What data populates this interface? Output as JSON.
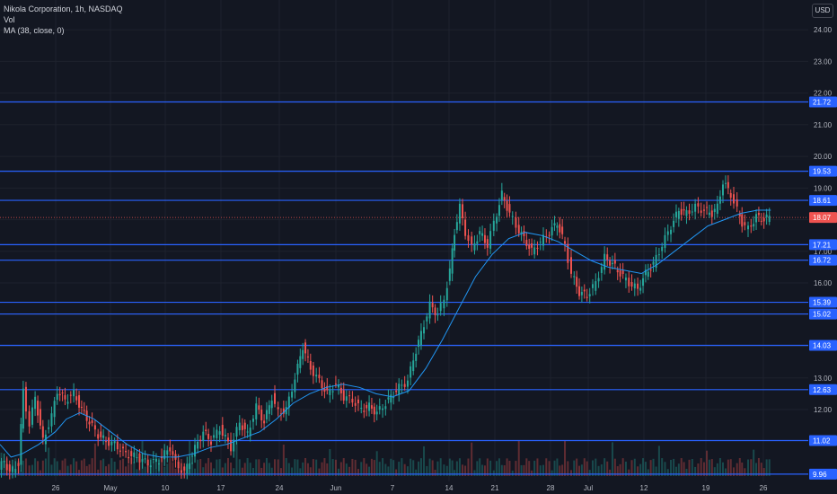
{
  "legend": {
    "symbol_line": "Nikola Corporation, 1h, NASDAQ",
    "vol_label": "Vol",
    "ma_label": "MA (38, close, 0)"
  },
  "currency_badge": "USD",
  "colors": {
    "background": "#131722",
    "grid": "#1e222d",
    "hline": "#2962ff",
    "up": "#26a69a",
    "down": "#ef5350",
    "ma": "#2196f3",
    "text": "#b2b5be",
    "last_price_bg": "#ef5350"
  },
  "chart_data": {
    "type": "candlestick",
    "title": "Nikola Corporation, 1h, NASDAQ",
    "x_ticks": [
      "26",
      "May",
      "10",
      "17",
      "24",
      "Jun",
      "7",
      "14",
      "21",
      "28",
      "Jul",
      "12",
      "19",
      "26"
    ],
    "x_tick_positions_in_bars": [
      1,
      1.2,
      2.2,
      3.2,
      4.2,
      5.2,
      6.2,
      7.2,
      8.2,
      9.2,
      10.2,
      11.2,
      12.2,
      13.2
    ],
    "y_ticks": [
      12.0,
      13.0,
      14.0,
      15.0,
      16.0,
      17.0,
      18.0,
      19.0,
      20.0,
      21.0,
      22.0,
      23.0,
      24.0
    ],
    "ylim": [
      9.9,
      24.6
    ],
    "horizontal_levels": [
      9.96,
      11.02,
      12.63,
      14.03,
      15.02,
      15.39,
      16.72,
      17.21,
      18.61,
      19.53,
      21.72
    ],
    "last_price": 18.07,
    "price_path": [
      [
        0,
        10.1
      ],
      [
        0.05,
        10.4
      ],
      [
        0.1,
        10.0
      ],
      [
        0.18,
        10.3
      ],
      [
        0.22,
        12.6
      ],
      [
        0.28,
        11.5
      ],
      [
        0.33,
        12.4
      ],
      [
        0.4,
        11.0
      ],
      [
        0.48,
        11.8
      ],
      [
        0.53,
        12.6
      ],
      [
        0.6,
        12.3
      ],
      [
        0.68,
        12.5
      ],
      [
        0.75,
        12.0
      ],
      [
        0.82,
        11.6
      ],
      [
        0.9,
        11.2
      ],
      [
        0.97,
        11.0
      ],
      [
        1.05,
        10.9
      ],
      [
        1.15,
        10.6
      ],
      [
        1.25,
        10.5
      ],
      [
        1.35,
        10.3
      ],
      [
        1.45,
        10.4
      ],
      [
        1.55,
        10.8
      ],
      [
        1.6,
        10.3
      ],
      [
        1.68,
        10.0
      ],
      [
        1.75,
        10.6
      ],
      [
        1.85,
        11.3
      ],
      [
        1.92,
        11.0
      ],
      [
        2.0,
        11.4
      ],
      [
        2.1,
        10.8
      ],
      [
        2.18,
        11.6
      ],
      [
        2.25,
        11.2
      ],
      [
        2.33,
        12.1
      ],
      [
        2.4,
        11.6
      ],
      [
        2.47,
        12.4
      ],
      [
        2.53,
        11.9
      ],
      [
        2.6,
        12.0
      ],
      [
        2.68,
        13.0
      ],
      [
        2.75,
        14.0
      ],
      [
        2.82,
        13.3
      ],
      [
        2.9,
        12.9
      ],
      [
        2.97,
        12.5
      ],
      [
        3.05,
        12.8
      ],
      [
        3.12,
        12.4
      ],
      [
        3.2,
        12.3
      ],
      [
        3.28,
        12.0
      ],
      [
        3.35,
        12.1
      ],
      [
        3.42,
        11.9
      ],
      [
        3.5,
        12.2
      ],
      [
        3.57,
        12.5
      ],
      [
        3.62,
        12.7
      ],
      [
        3.7,
        12.9
      ],
      [
        3.75,
        13.6
      ],
      [
        3.82,
        14.4
      ],
      [
        3.9,
        15.3
      ],
      [
        3.97,
        15.0
      ],
      [
        4.03,
        15.5
      ],
      [
        4.08,
        16.4
      ],
      [
        4.12,
        17.6
      ],
      [
        4.17,
        18.4
      ],
      [
        4.22,
        17.6
      ],
      [
        4.28,
        17.1
      ],
      [
        4.35,
        17.6
      ],
      [
        4.42,
        17.2
      ],
      [
        4.48,
        17.9
      ],
      [
        4.55,
        18.8
      ],
      [
        4.62,
        18.2
      ],
      [
        4.68,
        17.8
      ],
      [
        4.75,
        17.4
      ],
      [
        4.82,
        17.0
      ],
      [
        4.9,
        17.3
      ],
      [
        4.98,
        17.6
      ],
      [
        5.05,
        17.9
      ],
      [
        5.12,
        17.2
      ],
      [
        5.18,
        16.3
      ],
      [
        5.25,
        15.7
      ],
      [
        5.32,
        15.6
      ],
      [
        5.4,
        16.0
      ],
      [
        5.48,
        16.8
      ],
      [
        5.55,
        16.6
      ],
      [
        5.62,
        16.3
      ],
      [
        5.7,
        16.0
      ],
      [
        5.78,
        15.8
      ],
      [
        5.85,
        16.3
      ],
      [
        5.92,
        16.6
      ],
      [
        6.0,
        17.2
      ],
      [
        6.08,
        17.8
      ],
      [
        6.15,
        18.3
      ],
      [
        6.22,
        18.2
      ],
      [
        6.3,
        18.4
      ],
      [
        6.38,
        18.3
      ],
      [
        6.45,
        18.2
      ],
      [
        6.5,
        18.4
      ],
      [
        6.55,
        19.2
      ],
      [
        6.62,
        18.8
      ],
      [
        6.68,
        18.3
      ],
      [
        6.72,
        17.9
      ],
      [
        6.78,
        17.7
      ],
      [
        6.85,
        18.1
      ],
      [
        6.92,
        18.0
      ],
      [
        6.97,
        18.1
      ]
    ],
    "ma_path": [
      [
        0,
        10.9
      ],
      [
        0.1,
        10.5
      ],
      [
        0.2,
        10.6
      ],
      [
        0.35,
        10.9
      ],
      [
        0.5,
        11.3
      ],
      [
        0.6,
        11.7
      ],
      [
        0.72,
        11.9
      ],
      [
        0.85,
        11.7
      ],
      [
        1.0,
        11.3
      ],
      [
        1.15,
        10.9
      ],
      [
        1.3,
        10.6
      ],
      [
        1.45,
        10.5
      ],
      [
        1.6,
        10.5
      ],
      [
        1.75,
        10.6
      ],
      [
        1.9,
        10.8
      ],
      [
        2.05,
        10.9
      ],
      [
        2.2,
        11.1
      ],
      [
        2.35,
        11.3
      ],
      [
        2.5,
        11.7
      ],
      [
        2.65,
        12.2
      ],
      [
        2.8,
        12.5
      ],
      [
        2.95,
        12.7
      ],
      [
        3.1,
        12.8
      ],
      [
        3.25,
        12.7
      ],
      [
        3.4,
        12.5
      ],
      [
        3.55,
        12.4
      ],
      [
        3.7,
        12.6
      ],
      [
        3.85,
        13.3
      ],
      [
        4.0,
        14.2
      ],
      [
        4.15,
        15.2
      ],
      [
        4.3,
        16.2
      ],
      [
        4.45,
        16.9
      ],
      [
        4.6,
        17.4
      ],
      [
        4.75,
        17.6
      ],
      [
        4.9,
        17.5
      ],
      [
        5.05,
        17.3
      ],
      [
        5.2,
        17.0
      ],
      [
        5.35,
        16.7
      ],
      [
        5.5,
        16.5
      ],
      [
        5.65,
        16.4
      ],
      [
        5.8,
        16.3
      ],
      [
        5.95,
        16.6
      ],
      [
        6.1,
        17.0
      ],
      [
        6.25,
        17.4
      ],
      [
        6.4,
        17.8
      ],
      [
        6.55,
        18.0
      ],
      [
        6.7,
        18.2
      ],
      [
        6.85,
        18.3
      ],
      [
        6.97,
        18.3
      ]
    ]
  }
}
